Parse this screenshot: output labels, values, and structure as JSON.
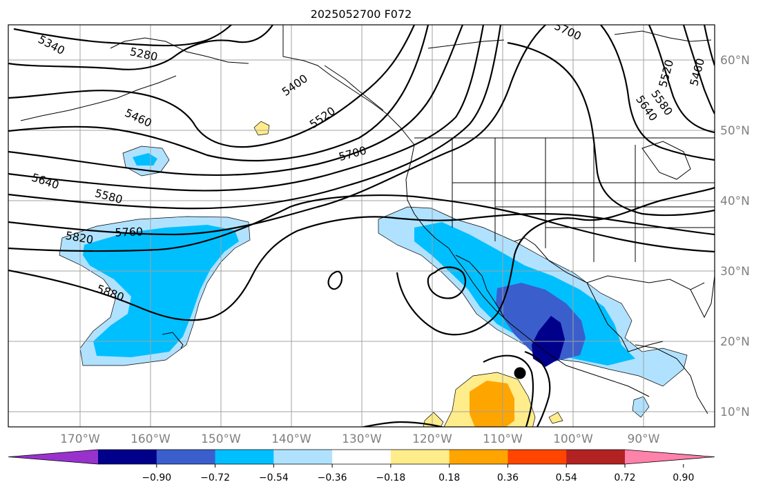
{
  "title": "2025052700 F072",
  "lat_labels": [
    "60°N",
    "50°N",
    "40°N",
    "30°N",
    "20°N",
    "10°N"
  ],
  "lon_labels": [
    "170°W",
    "160°W",
    "150°W",
    "140°W",
    "130°W",
    "120°W",
    "110°W",
    "100°W",
    "90°W"
  ],
  "contour_labels": [
    "5340",
    "5280",
    "5400",
    "5520",
    "5460",
    "5700",
    "5640",
    "5580",
    "5760",
    "5820",
    "5880",
    "5700",
    "5520",
    "5460",
    "5640",
    "5580"
  ],
  "colorbar": {
    "ticks": [
      "−0.90",
      "−0.72",
      "−0.54",
      "−0.36",
      "−0.18",
      "0.18",
      "0.36",
      "0.54",
      "0.72",
      "0.90"
    ],
    "colors": [
      "#9932cc",
      "#00008b",
      "#3a5fcd",
      "#00bfff",
      "#b0e2ff",
      "#ffffff",
      "#ffec8b",
      "#ffa500",
      "#ff4500",
      "#b22222",
      "#ff82ab"
    ]
  },
  "fill_colors": {
    "light_blue": "#b0e2ff",
    "deep_sky_blue": "#00bfff",
    "royal_blue": "#3a5fcd",
    "navy": "#00008b",
    "light_yellow": "#ffec8b",
    "orange": "#ffa500"
  },
  "marker": "storm-center-dot"
}
